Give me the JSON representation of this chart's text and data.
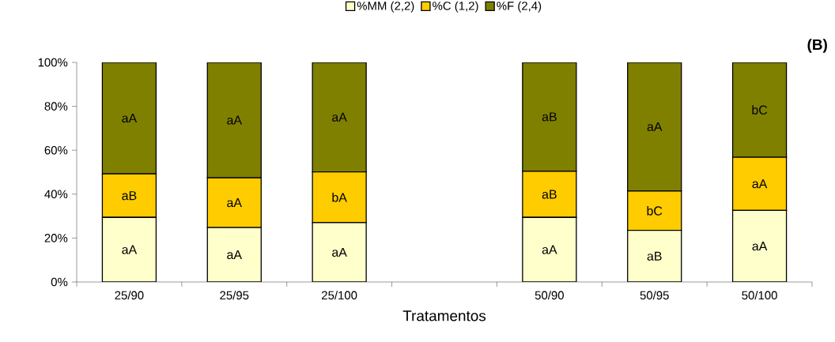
{
  "chart_data": {
    "type": "bar",
    "stacked": true,
    "xlabel": "Tratamentos",
    "annotations": [
      "(B)"
    ],
    "categories": [
      "25/90",
      "25/95",
      "25/100",
      null,
      "50/90",
      "50/95",
      "50/100"
    ],
    "series": [
      {
        "name": "%MM (2,2)",
        "color": "#ffffcc",
        "values": [
          29.4,
          24.8,
          27.0,
          null,
          29.4,
          23.5,
          32.6
        ],
        "value_labels": [
          "aA",
          "aA",
          "aA",
          null,
          "aA",
          "aB",
          "aA"
        ]
      },
      {
        "name": "%C (1,2)",
        "color": "#ffcc00",
        "values": [
          19.8,
          22.6,
          23.1,
          null,
          21.0,
          17.9,
          24.2
        ],
        "value_labels": [
          "aB",
          "aA",
          "bA",
          null,
          "aB",
          "bC",
          "aA"
        ]
      },
      {
        "name": "%F (2,4)",
        "color": "#808000",
        "values": [
          50.8,
          52.6,
          49.9,
          null,
          49.6,
          58.6,
          43.2
        ],
        "value_labels": [
          "aA",
          "aA",
          "aA",
          null,
          "aB",
          "aA",
          "bC"
        ]
      }
    ],
    "ylim": [
      0,
      100
    ],
    "yticks": [
      {
        "value": 0,
        "label": "0%"
      },
      {
        "value": 20,
        "label": "20%"
      },
      {
        "value": 40,
        "label": "40%"
      },
      {
        "value": 60,
        "label": "60%"
      },
      {
        "value": 80,
        "label": "80%"
      },
      {
        "value": 100,
        "label": "100%"
      }
    ],
    "grid": false,
    "legend": "top"
  }
}
